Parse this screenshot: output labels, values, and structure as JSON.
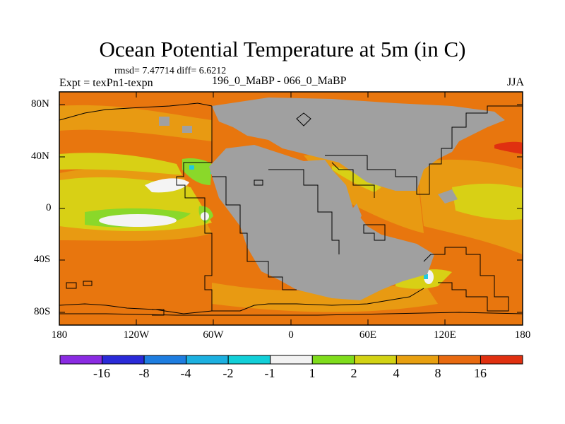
{
  "header": {
    "title": "Ocean Potential Temperature at 5m (in C)",
    "stats": "rmsd= 7.47714 diff= 6.6212",
    "expt": "Expt = texPn1-texpn",
    "subtitle": "196_0_MaBP - 066_0_MaBP",
    "season": "JJA"
  },
  "axes": {
    "y_ticks": [
      "80N",
      "40N",
      "0",
      "40S",
      "80S"
    ],
    "x_ticks": [
      "180",
      "120W",
      "60W",
      "0",
      "60E",
      "120E",
      "180"
    ]
  },
  "colorbar": {
    "colors": [
      "#8a2be2",
      "#2a2ad8",
      "#1e7de0",
      "#1cb0e0",
      "#12cfd8",
      "#f2f2f2",
      "#7fdc1c",
      "#d2d214",
      "#e8a010",
      "#e86a10",
      "#e03010"
    ],
    "labels": [
      "-16",
      "-8",
      "-4",
      "-2",
      "-1",
      "1",
      "2",
      "4",
      "8",
      "16"
    ]
  },
  "legend_colors": {
    "land": "#a0a0a0",
    "warm_orange": "#e8760e",
    "orange": "#e89a12",
    "yellow": "#d8d015",
    "green": "#8ad82a",
    "white": "#f4f4f4",
    "red": "#e03010",
    "cyan": "#20c8e0"
  }
}
